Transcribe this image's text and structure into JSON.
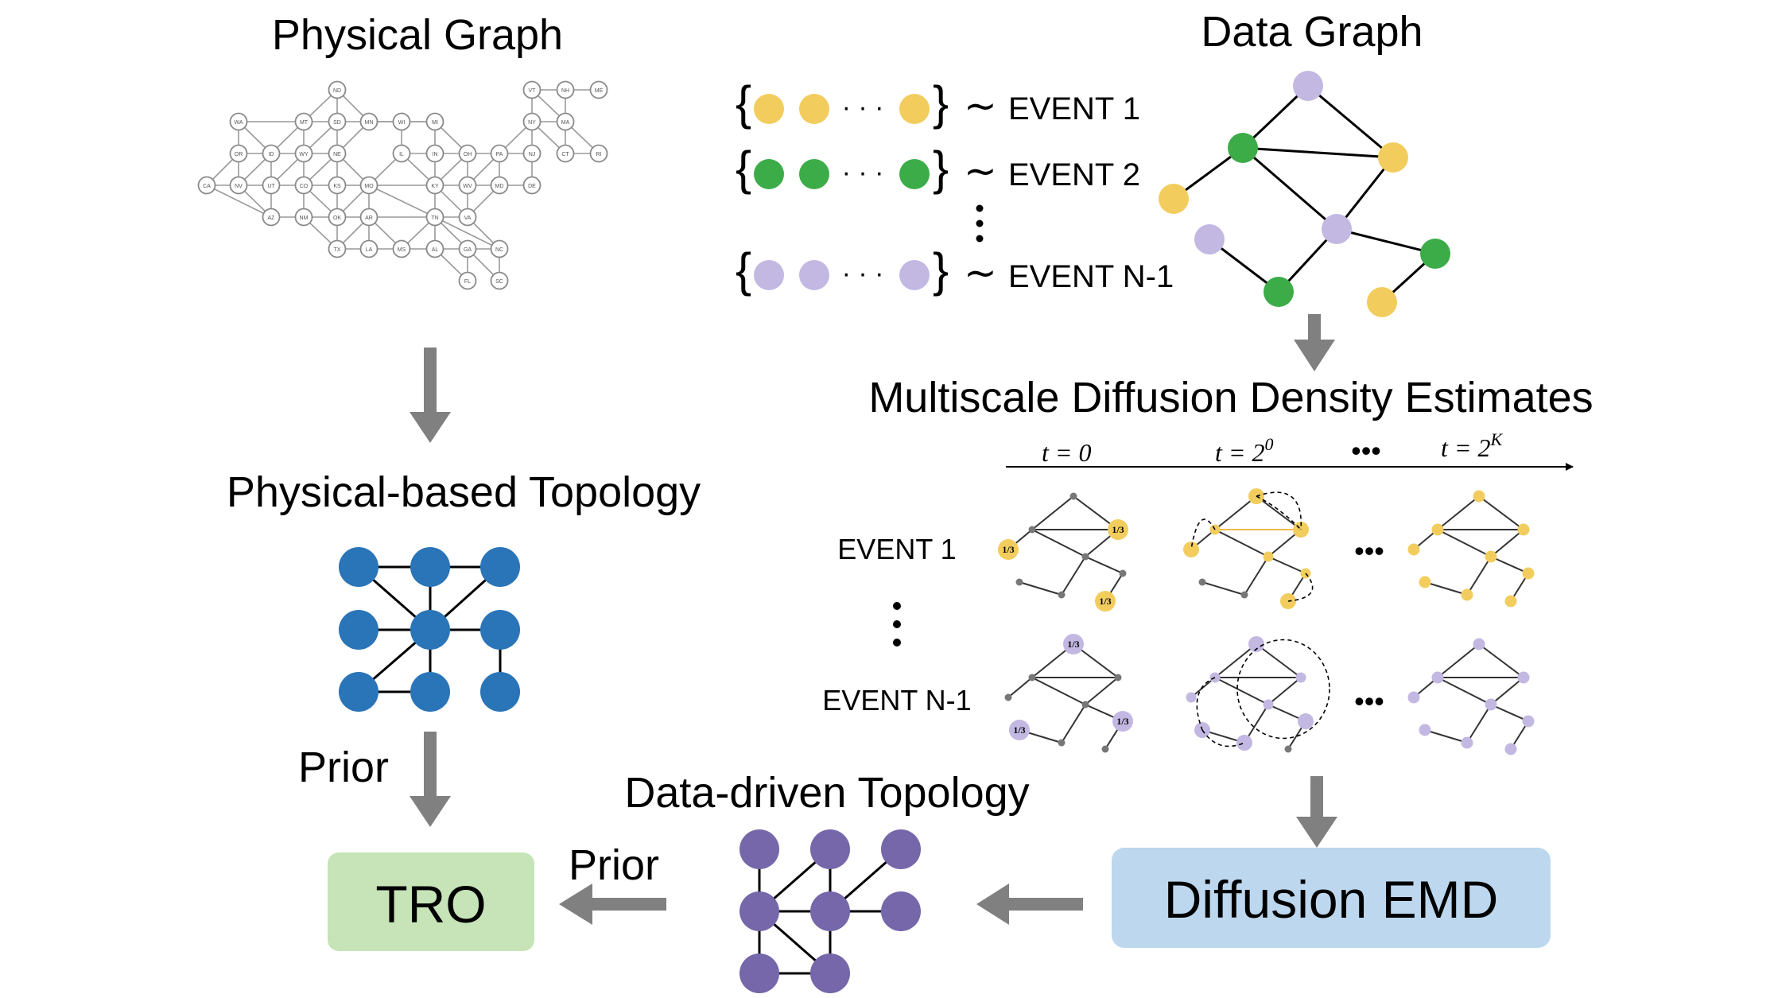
{
  "labels": {
    "physical_graph": "Physical Graph",
    "data_graph": "Data Graph",
    "event_1": "EVENT 1",
    "event_2": "EVENT 2",
    "event_n1": "EVENT N-1",
    "tilde": "∼",
    "dots": "· · ·",
    "multiscale": "Multiscale Diffusion Density Estimates",
    "t0": "t = 0",
    "t1_base": "t = 2",
    "t1_exp": "0",
    "tk_base": "t = 2",
    "tk_exp": "K",
    "physical_topology": "Physical-based Topology",
    "prior_left": "Prior",
    "prior_bottom": "Prior",
    "data_driven_topology": "Data-driven Topology",
    "diffusion_emd": "Diffusion EMD",
    "tro": "TRO",
    "one_third": "1/3"
  },
  "map_states": [
    "ND",
    "VT",
    "NH",
    "ME",
    "WA",
    "MT",
    "SD",
    "MN",
    "WI",
    "MI",
    "NY",
    "MA",
    "OR",
    "ID",
    "WY",
    "NE",
    "IL",
    "IN",
    "OH",
    "PA",
    "NJ",
    "CT",
    "RI",
    "CA",
    "NV",
    "UT",
    "CO",
    "KS",
    "MO",
    "KY",
    "WV",
    "MD",
    "DE",
    "AZ",
    "NM",
    "OK",
    "AR",
    "TN",
    "VA",
    "TX",
    "LA",
    "MS",
    "AL",
    "GA",
    "NC",
    "FL",
    "SC"
  ],
  "colors": {
    "yellow": "#f2cd5e",
    "green": "#3cac48",
    "lavender": "#c2b8e2",
    "blue": "#2a74b8",
    "purple": "#7567a9",
    "arrow": "#808080",
    "tro_box": "#c6e4b7",
    "emd_box": "#bdd7ee"
  }
}
